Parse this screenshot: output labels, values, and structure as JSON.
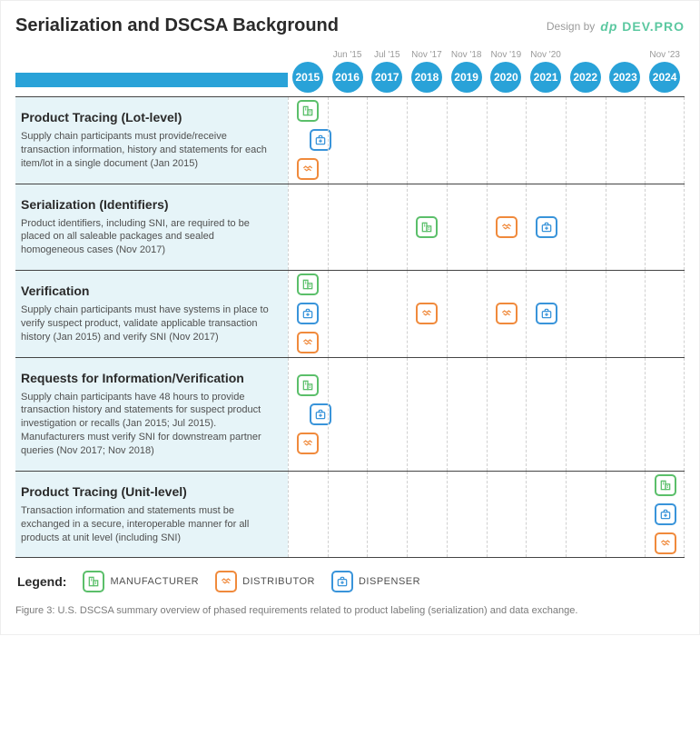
{
  "title": "Serialization and DSCSA Background",
  "design_by_label": "Design by",
  "design_by_logo": "dp DEV.PRO",
  "years": [
    {
      "year": "2015",
      "sublabel": ""
    },
    {
      "year": "2016",
      "sublabel": "Jun '15"
    },
    {
      "year": "2017",
      "sublabel": "Jul '15"
    },
    {
      "year": "2018",
      "sublabel": "Nov '17"
    },
    {
      "year": "2019",
      "sublabel": "Nov '18"
    },
    {
      "year": "2020",
      "sublabel": "Nov '19"
    },
    {
      "year": "2021",
      "sublabel": "Nov '20"
    },
    {
      "year": "2022",
      "sublabel": ""
    },
    {
      "year": "2023",
      "sublabel": ""
    },
    {
      "year": "2024",
      "sublabel": "Nov '23"
    }
  ],
  "rows": [
    {
      "title": "Product Tracing (Lot-level)",
      "desc": "Supply chain participants must provide/receive transaction information, history and statements for each item/lot in a single document (Jan 2015)",
      "icons": [
        {
          "yearIndex": 0,
          "type": "manufacturer",
          "stackPos": 0
        },
        {
          "yearIndex": 0,
          "type": "dispenser",
          "stackPos": 1,
          "offset": true
        },
        {
          "yearIndex": 0,
          "type": "distributor",
          "stackPos": 2
        }
      ]
    },
    {
      "title": "Serialization (Identifiers)",
      "desc": "Product identifiers, including SNI, are required to be placed on all saleable packages and sealed homogeneous cases (Nov 2017)",
      "icons": [
        {
          "yearIndex": 3,
          "type": "manufacturer",
          "stackPos": 0
        },
        {
          "yearIndex": 5,
          "type": "distributor",
          "stackPos": 0
        },
        {
          "yearIndex": 6,
          "type": "dispenser",
          "stackPos": 0
        }
      ]
    },
    {
      "title": "Verification",
      "desc": "Supply chain participants must have systems in place to verify suspect product, validate applicable transaction history (Jan 2015) and verify SNI (Nov 2017)",
      "icons": [
        {
          "yearIndex": 0,
          "type": "manufacturer",
          "stackPos": 0
        },
        {
          "yearIndex": 0,
          "type": "dispenser",
          "stackPos": 1
        },
        {
          "yearIndex": 0,
          "type": "distributor",
          "stackPos": 2
        },
        {
          "yearIndex": 3,
          "type": "distributor",
          "stackPos": 1
        },
        {
          "yearIndex": 5,
          "type": "distributor",
          "stackPos": 1
        },
        {
          "yearIndex": 6,
          "type": "dispenser",
          "stackPos": 1
        }
      ]
    },
    {
      "title": "Requests for Information/Verification",
      "desc": "Supply chain participants have 48 hours to provide transaction history and statements for suspect product investigation or recalls (Jan 2015; Jul 2015). Manufacturers must verify SNI for downstream partner queries (Nov 2017; Nov 2018)",
      "icons": [
        {
          "yearIndex": 0,
          "type": "manufacturer",
          "stackPos": 0
        },
        {
          "yearIndex": 0,
          "type": "dispenser",
          "stackPos": 1,
          "offset": true
        },
        {
          "yearIndex": 0,
          "type": "distributor",
          "stackPos": 2
        }
      ]
    },
    {
      "title": "Product Tracing (Unit-level)",
      "desc": "Transaction information and statements must be exchanged in a secure, interoperable manner for all products at unit level (including SNI)",
      "icons": [
        {
          "yearIndex": 9,
          "type": "manufacturer",
          "stackPos": 0
        },
        {
          "yearIndex": 9,
          "type": "dispenser",
          "stackPos": 1
        },
        {
          "yearIndex": 9,
          "type": "distributor",
          "stackPos": 2
        }
      ]
    }
  ],
  "legend": {
    "label": "Legend:",
    "items": [
      {
        "type": "manufacturer",
        "label": "MANUFACTURER"
      },
      {
        "type": "distributor",
        "label": "DISTRIBUTOR"
      },
      {
        "type": "dispenser",
        "label": "DISPENSER"
      }
    ]
  },
  "caption": "Figure 3: U.S. DSCSA summary overview of phased requirements related to product labeling (serialization) and data exchange.",
  "colors": {
    "accent": "#29a2d8",
    "manufacturer": "#5bbf6a",
    "distributor": "#f08a3c",
    "dispenser": "#3994da",
    "row_bg": "#e6f4f8",
    "rule": "#444444",
    "dash": "#d0d0d0",
    "text": "#2a2a2a",
    "subtext": "#4f4f4f",
    "caption": "#7a7a7a"
  },
  "icon_glyphs": {
    "manufacturer": "svg:building",
    "distributor": "svg:handshake",
    "dispenser": "svg:medkit"
  }
}
